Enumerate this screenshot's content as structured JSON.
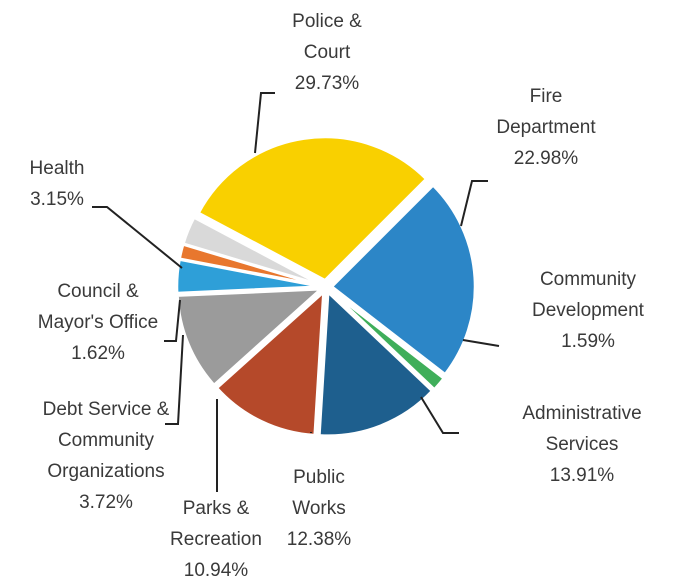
{
  "chart_data": {
    "type": "pie",
    "title": "",
    "slices": [
      {
        "label_lines": [
          "Police &",
          "Court"
        ],
        "value_text": "29.73%",
        "value": 29.73,
        "color": "#F9D000"
      },
      {
        "label_lines": [
          "Fire",
          "Department"
        ],
        "value_text": "22.98%",
        "value": 22.98,
        "color": "#2C86C7"
      },
      {
        "label_lines": [
          "Community",
          "Development"
        ],
        "value_text": "1.59%",
        "value": 1.59,
        "color": "#3FAE5A"
      },
      {
        "label_lines": [
          "Administrative",
          "Services"
        ],
        "value_text": "13.91%",
        "value": 13.91,
        "color": "#1E5F8E"
      },
      {
        "label_lines": [
          "Public",
          "Works"
        ],
        "value_text": "12.38%",
        "value": 12.38,
        "color": "#B5492A"
      },
      {
        "label_lines": [
          "Parks &",
          "Recreation"
        ],
        "value_text": "10.94%",
        "value": 10.94,
        "color": "#9B9B9B"
      },
      {
        "label_lines": [
          "Debt Service &",
          "Community",
          "Organizations"
        ],
        "value_text": "3.72%",
        "value": 3.72,
        "color": "#2E9FD8"
      },
      {
        "label_lines": [
          "Council &",
          "Mayor's Office"
        ],
        "value_text": "1.62%",
        "value": 1.62,
        "color": "#E8772E"
      },
      {
        "label_lines": [
          "Health"
        ],
        "value_text": "3.15%",
        "value": 3.15,
        "color": "#D9D9D9"
      }
    ],
    "legend": "none",
    "labels": "outside-with-leader-lines"
  }
}
